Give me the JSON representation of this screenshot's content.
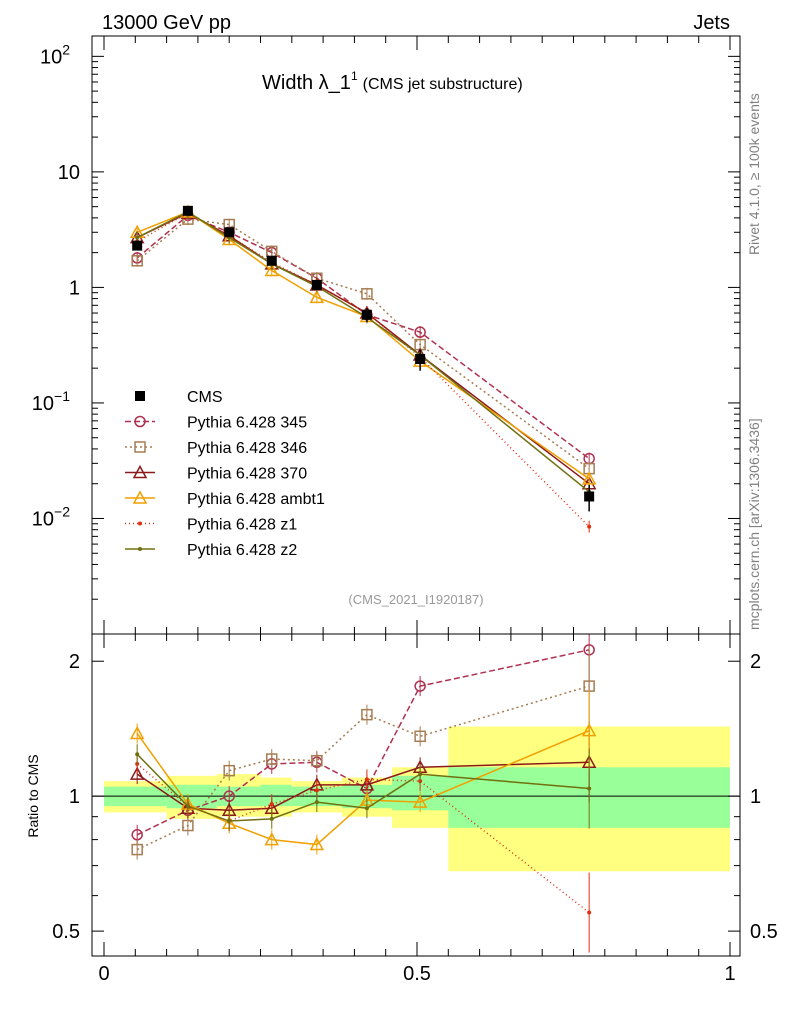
{
  "header": {
    "left": "13000 GeV pp",
    "right": "Jets"
  },
  "title": {
    "main": "Width λ_1",
    "superscript": "1",
    "suffix": "(CMS jet substructure)"
  },
  "side_labels": {
    "rivet": "Rivet 4.1.0, ≥ 100k events",
    "mcplots": "mcplots.cern.ch [arXiv:1306.3436]"
  },
  "analysis_tag": "(CMS_2021_I1920187)",
  "ratio_ylabel": "Ratio to CMS",
  "chart_data": {
    "type": "line",
    "x_ticks": [
      {
        "v": 0,
        "label": "0"
      },
      {
        "v": 0.5,
        "label": "0.5"
      },
      {
        "v": 1,
        "label": "1"
      }
    ],
    "main": {
      "yscale": "log",
      "ylim": [
        0.001,
        150
      ],
      "y_ticks": [
        {
          "v": 100,
          "base": "10",
          "exp": "2"
        },
        {
          "v": 10,
          "base": "10",
          "exp": ""
        },
        {
          "v": 1,
          "base": "1",
          "exp": ""
        },
        {
          "v": 0.1,
          "base": "10",
          "exp": "−1"
        },
        {
          "v": 0.01,
          "base": "10",
          "exp": "−2"
        }
      ]
    },
    "ratio": {
      "ylim": [
        0.44,
        2.3
      ],
      "y_ticks": [
        {
          "v": 2,
          "label": "2"
        },
        {
          "v": 1,
          "label": "1"
        },
        {
          "v": 0.5,
          "label": "0.5"
        }
      ],
      "bands": [
        {
          "x0": 0.0,
          "x1": 0.1,
          "g": [
            0.95,
            1.05
          ],
          "y": [
            0.92,
            1.08
          ]
        },
        {
          "x0": 0.1,
          "x1": 0.18,
          "g": [
            0.94,
            1.06
          ],
          "y": [
            0.89,
            1.11
          ]
        },
        {
          "x0": 0.18,
          "x1": 0.25,
          "g": [
            0.95,
            1.05
          ],
          "y": [
            0.9,
            1.12
          ]
        },
        {
          "x0": 0.25,
          "x1": 0.3,
          "g": [
            0.95,
            1.06
          ],
          "y": [
            0.9,
            1.1
          ]
        },
        {
          "x0": 0.3,
          "x1": 0.38,
          "g": [
            0.95,
            1.05
          ],
          "y": [
            0.92,
            1.08
          ]
        },
        {
          "x0": 0.38,
          "x1": 0.46,
          "g": [
            0.94,
            1.06
          ],
          "y": [
            0.9,
            1.1
          ]
        },
        {
          "x0": 0.46,
          "x1": 0.55,
          "g": [
            0.93,
            1.11
          ],
          "y": [
            0.85,
            1.16
          ]
        },
        {
          "x0": 0.55,
          "x1": 1.0,
          "g": [
            0.85,
            1.16
          ],
          "y": [
            0.68,
            1.43
          ]
        }
      ]
    },
    "x": [
      0.053,
      0.134,
      0.2,
      0.268,
      0.34,
      0.42,
      0.505,
      0.775
    ],
    "data": {
      "name": "CMS",
      "values": [
        2.3,
        4.6,
        3.0,
        1.7,
        1.05,
        0.58,
        0.24,
        0.0155
      ],
      "errors": [
        0.12,
        0.25,
        0.15,
        0.09,
        0.06,
        0.08,
        0.05,
        0.004
      ]
    },
    "series": [
      {
        "name": "Pythia 6.428 345",
        "color": "#b03050",
        "dash": "6,3",
        "marker": "circle",
        "values": [
          1.8,
          4.2,
          3.0,
          2.0,
          1.2,
          0.58,
          0.41,
          0.033
        ],
        "ratio": [
          0.82,
          0.93,
          1.0,
          1.18,
          1.19,
          1.04,
          1.76,
          2.12
        ]
      },
      {
        "name": "Pythia 6.428 346",
        "color": "#a67c52",
        "dash": "2,3",
        "marker": "square",
        "values": [
          1.7,
          3.9,
          3.5,
          2.05,
          1.2,
          0.88,
          0.32,
          0.027
        ],
        "ratio": [
          0.76,
          0.86,
          1.14,
          1.21,
          1.2,
          1.52,
          1.36,
          1.76
        ]
      },
      {
        "name": "Pythia 6.428 370",
        "color": "#8b1a1a",
        "dash": "",
        "marker": "triangle",
        "values": [
          2.7,
          4.4,
          2.8,
          1.6,
          1.05,
          0.6,
          0.26,
          0.02
        ],
        "ratio": [
          1.12,
          0.94,
          0.93,
          0.94,
          1.06,
          1.06,
          1.16,
          1.19
        ]
      },
      {
        "name": "Pythia 6.428 ambt1",
        "color": "#f0a000",
        "dash": "",
        "marker": "triangle",
        "values": [
          3.0,
          4.5,
          2.6,
          1.4,
          0.82,
          0.56,
          0.23,
          0.022
        ],
        "ratio": [
          1.38,
          0.96,
          0.87,
          0.8,
          0.78,
          0.98,
          0.97,
          1.4
        ]
      },
      {
        "name": "Pythia 6.428 z1",
        "color": "#e03010",
        "dash": "1,3",
        "marker": "dot",
        "values": [
          2.5,
          4.4,
          2.8,
          1.65,
          1.05,
          0.6,
          0.25,
          0.0085
        ],
        "ratio": [
          1.18,
          0.95,
          0.88,
          0.96,
          1.03,
          1.09,
          1.08,
          0.55
        ]
      },
      {
        "name": "Pythia 6.428 z2",
        "color": "#707010",
        "dash": "",
        "marker": "dot",
        "values": [
          2.7,
          4.5,
          2.7,
          1.6,
          1.02,
          0.55,
          0.26,
          0.017
        ],
        "ratio": [
          1.24,
          0.95,
          0.88,
          0.89,
          0.97,
          0.94,
          1.12,
          1.04
        ]
      }
    ]
  }
}
